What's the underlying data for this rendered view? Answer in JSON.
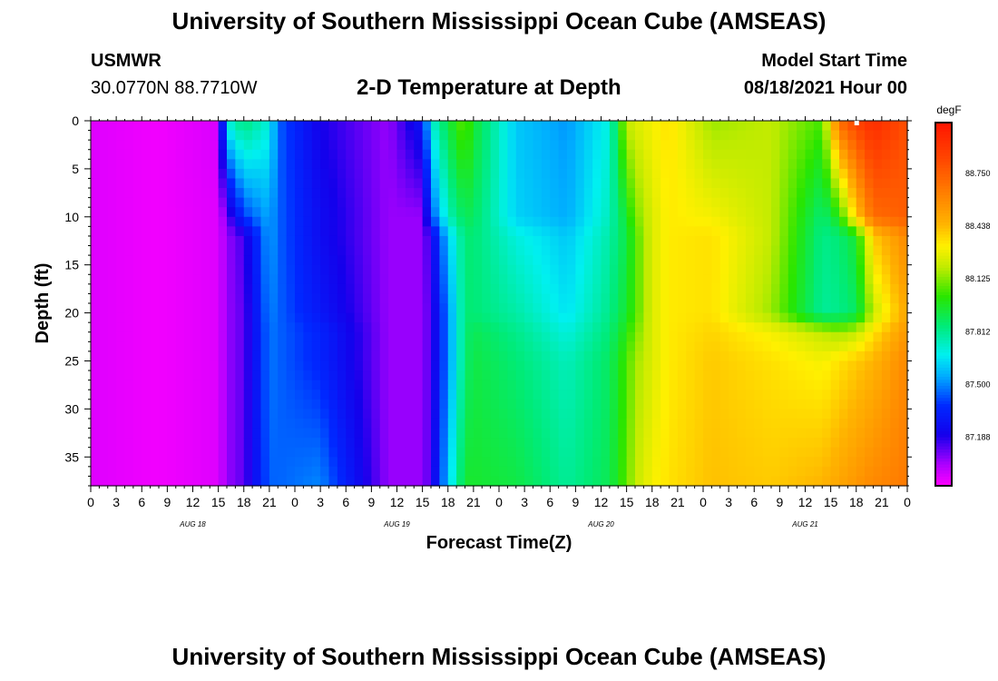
{
  "header": {
    "title": "University of Southern Mississippi Ocean Cube (AMSEAS)",
    "station": "USMWR",
    "coords": "30.0770N  88.7710W",
    "subtitle": "2-D Temperature at Depth",
    "model_label": "Model Start Time",
    "model_start": "08/18/2021 Hour 00"
  },
  "footer": {
    "title": "University of Southern Mississippi Ocean Cube (AMSEAS)"
  },
  "chart_data": {
    "type": "heatmap",
    "xlabel": "Forecast Time(Z)",
    "ylabel": "Depth (ft)",
    "units_label": "degF",
    "x_hours": [
      0,
      96
    ],
    "x_tick_labels": [
      "0",
      "3",
      "6",
      "9",
      "12",
      "15",
      "18",
      "21",
      "0",
      "3",
      "6",
      "9",
      "12",
      "15",
      "18",
      "21",
      "0",
      "3",
      "6",
      "9",
      "12",
      "15",
      "18",
      "21",
      "0",
      "3",
      "6",
      "9",
      "12",
      "15",
      "18",
      "21",
      "0"
    ],
    "day_labels": [
      {
        "hour": 12,
        "text": "AUG 18"
      },
      {
        "hour": 36,
        "text": "AUG 19"
      },
      {
        "hour": 60,
        "text": "AUG 20"
      },
      {
        "hour": 84,
        "text": "AUG 21"
      }
    ],
    "y_range_ft": [
      0,
      38
    ],
    "y_ticks": [
      0,
      5,
      10,
      15,
      20,
      25,
      30,
      35
    ],
    "colorbar": {
      "min": 86.9,
      "max": 89.05,
      "tick_values": [
        88.75,
        88.438,
        88.125,
        87.812,
        87.5,
        87.188
      ],
      "tick_labels": [
        "88.750",
        "88.438",
        "88.125",
        "87.812",
        "87.500",
        "87.188"
      ]
    },
    "grid": false,
    "description_note": "",
    "profile_hours": [
      0,
      8,
      15,
      16,
      18,
      21,
      22,
      27,
      35,
      39,
      40,
      42,
      44,
      45,
      50,
      56,
      61,
      63,
      64,
      66,
      68,
      73,
      80,
      86,
      88,
      90,
      92,
      96
    ],
    "profile_depths_ft": [
      0,
      10,
      12,
      20,
      22,
      25,
      38
    ],
    "temperature_degF": [
      [
        86.95,
        86.95,
        86.95,
        86.95,
        86.95,
        86.95,
        86.95
      ],
      [
        86.92,
        86.92,
        86.92,
        86.92,
        86.92,
        86.92,
        86.92
      ],
      [
        86.96,
        86.95,
        86.95,
        86.95,
        86.95,
        86.95,
        86.95
      ],
      [
        87.7,
        87.1,
        87.05,
        87.05,
        87.05,
        87.05,
        87.05
      ],
      [
        87.85,
        87.4,
        87.15,
        87.12,
        87.12,
        87.12,
        87.12
      ],
      [
        87.7,
        87.55,
        87.55,
        87.5,
        87.48,
        87.48,
        87.45
      ],
      [
        87.45,
        87.45,
        87.45,
        87.45,
        87.45,
        87.45,
        87.45
      ],
      [
        87.2,
        87.25,
        87.25,
        87.3,
        87.35,
        87.35,
        87.5
      ],
      [
        87.05,
        87.05,
        87.05,
        87.05,
        87.05,
        87.05,
        87.05
      ],
      [
        87.3,
        87.05,
        87.05,
        87.05,
        87.05,
        87.05,
        87.05
      ],
      [
        87.7,
        87.4,
        87.2,
        87.15,
        87.15,
        87.15,
        87.15
      ],
      [
        87.92,
        87.75,
        87.6,
        87.5,
        87.5,
        87.5,
        87.6
      ],
      [
        88.1,
        87.9,
        87.85,
        87.85,
        87.85,
        87.85,
        87.95
      ],
      [
        87.95,
        87.88,
        87.85,
        87.85,
        87.9,
        87.92,
        87.95
      ],
      [
        87.6,
        87.62,
        87.7,
        87.78,
        87.82,
        87.85,
        87.92
      ],
      [
        87.52,
        87.55,
        87.6,
        87.65,
        87.7,
        87.75,
        87.8
      ],
      [
        87.7,
        87.75,
        87.78,
        87.82,
        87.85,
        87.88,
        87.9
      ],
      [
        88.2,
        87.95,
        87.92,
        87.95,
        88.0,
        88.05,
        88.08
      ],
      [
        88.25,
        88.1,
        88.05,
        88.05,
        88.1,
        88.15,
        88.2
      ],
      [
        88.3,
        88.25,
        88.25,
        88.25,
        88.25,
        88.25,
        88.3
      ],
      [
        88.35,
        88.33,
        88.33,
        88.33,
        88.33,
        88.33,
        88.35
      ],
      [
        88.15,
        88.3,
        88.35,
        88.35,
        88.38,
        88.4,
        88.42
      ],
      [
        88.2,
        88.2,
        88.2,
        88.15,
        88.3,
        88.35,
        88.4
      ],
      [
        88.05,
        87.85,
        87.82,
        87.8,
        88.2,
        88.3,
        88.45
      ],
      [
        88.7,
        88.0,
        87.85,
        87.82,
        88.15,
        88.35,
        88.5
      ],
      [
        88.85,
        88.4,
        87.95,
        87.88,
        88.2,
        88.4,
        88.55
      ],
      [
        88.95,
        88.7,
        88.4,
        88.2,
        88.35,
        88.45,
        88.6
      ],
      [
        88.8,
        88.75,
        88.6,
        88.5,
        88.55,
        88.6,
        88.65
      ]
    ]
  }
}
